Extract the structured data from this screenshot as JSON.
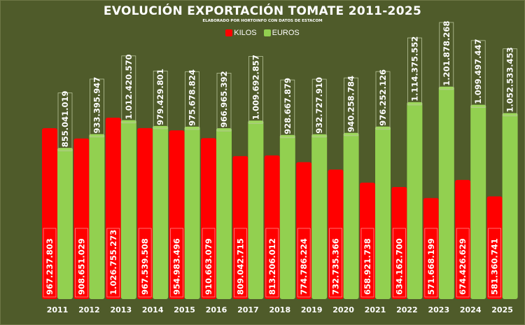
{
  "chart_data": {
    "type": "bar",
    "title": "EVOLUCIÓN EXPORTACIÓN TOMATE 2011-2025",
    "subtitle": "ELABORADO POR HORTOINFO CON DATOS DE ESTACOM",
    "xlabel": "",
    "ylabel": "",
    "ylim": [
      0,
      1300000000
    ],
    "grid": false,
    "legend_position": "top-center",
    "categories": [
      "2011",
      "2012",
      "2013",
      "2014",
      "2015",
      "2016",
      "2017",
      "2018",
      "2019",
      "2020",
      "2021",
      "2022",
      "2023",
      "2024",
      "2025"
    ],
    "series": [
      {
        "name": "KILOS",
        "color": "#ff0000",
        "values": [
          967237803,
          908651029,
          1026755273,
          967539508,
          954983496,
          910663079,
          809042715,
          813206012,
          774786224,
          732735366,
          658921738,
          634162700,
          571668199,
          674426629,
          581360741
        ],
        "labels": [
          "967.237.803",
          "908.651.029",
          "1.026.755.273",
          "967.539.508",
          "954.983.496",
          "910.663.079",
          "809.042.715",
          "813.206.012",
          "774.786.224",
          "732.735.366",
          "658.921.738",
          "634.162.700",
          "571.668.199",
          "674.426.629",
          "581.360.741"
        ]
      },
      {
        "name": "EUROS",
        "color": "#92d050",
        "values": [
          855041019,
          933395947,
          1012420570,
          979429801,
          975678824,
          966965392,
          1009692857,
          928667879,
          932727910,
          940258784,
          976252126,
          1114375552,
          1201878268,
          1099497447,
          1052533453
        ],
        "labels": [
          "855.041.019",
          "933.395.947",
          "1.012.420.570",
          "979.429.801",
          "975.678.824",
          "966.965.392",
          "1.009.692.857",
          "928.667.879",
          "932.727.910",
          "940.258.784",
          "976.252.126",
          "1.114.375.552",
          "1.201.878.268",
          "1.099.497.447",
          "1.052.533.453"
        ]
      }
    ]
  }
}
